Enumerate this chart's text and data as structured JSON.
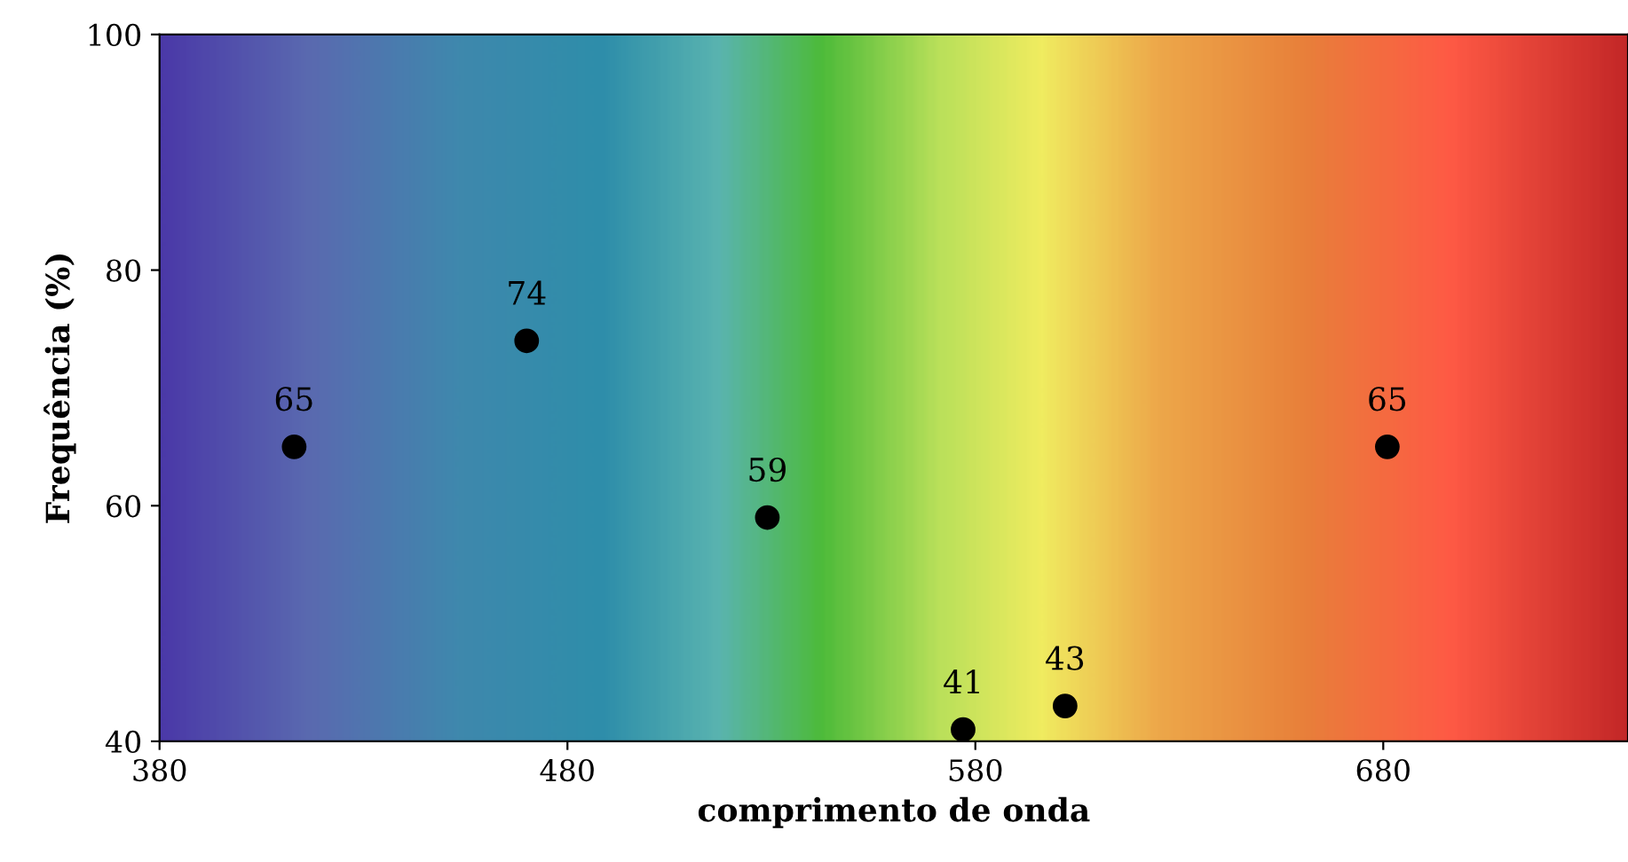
{
  "chart_data": {
    "type": "scatter",
    "xlabel": "comprimento de onda",
    "ylabel": "Frequência (%)",
    "x": [
      413,
      470,
      529,
      577,
      602,
      681
    ],
    "values": [
      65,
      74,
      59,
      41,
      43,
      65
    ],
    "color": "#000000",
    "marker": "circle",
    "data_labels": true,
    "xlim": [
      380,
      740
    ],
    "xticks": [
      380,
      480,
      580,
      680
    ],
    "ylim": [
      40,
      100
    ],
    "yticks": [
      40,
      60,
      80,
      100
    ],
    "grid": false,
    "legend": false
  }
}
